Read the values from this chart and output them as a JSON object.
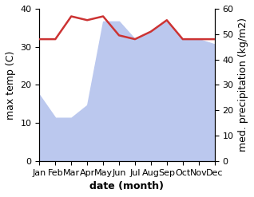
{
  "months": [
    "Jan",
    "Feb",
    "Mar",
    "Apr",
    "May",
    "Jun",
    "Jul",
    "Aug",
    "Sep",
    "Oct",
    "Nov",
    "Dec"
  ],
  "month_x": [
    0,
    1,
    2,
    3,
    4,
    5,
    6,
    7,
    8,
    9,
    10,
    11
  ],
  "precipitation": [
    26,
    17,
    17,
    22,
    55,
    55,
    48,
    51,
    55,
    48,
    48,
    46
  ],
  "temperature": [
    32,
    32,
    38,
    37,
    38,
    33,
    32,
    34,
    37,
    32,
    32,
    32
  ],
  "temp_color": "#cc3333",
  "precip_fill_color": "#bbc8ee",
  "ylim_left": [
    0,
    40
  ],
  "ylim_right": [
    0,
    60
  ],
  "xlabel": "date (month)",
  "ylabel_left": "max temp (C)",
  "ylabel_right": "med. precipitation (kg/m2)",
  "axis_fontsize": 9,
  "tick_fontsize": 8,
  "label_fontsize": 9
}
